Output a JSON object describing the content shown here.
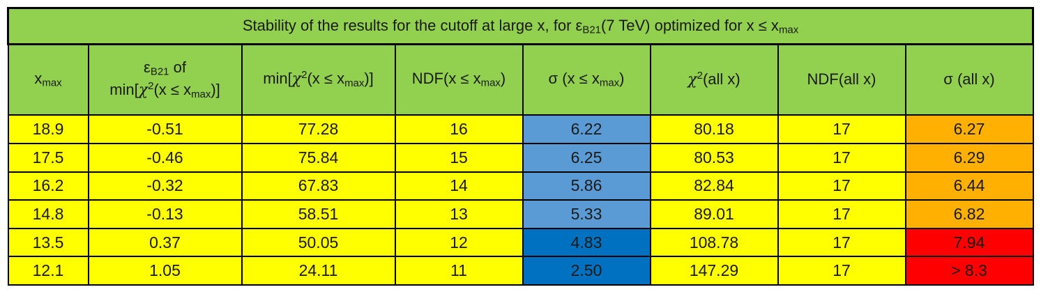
{
  "title": {
    "prefix": "Stability of the results for the cutoff at large x, for ε",
    "eps_sub": "B21",
    "middle": "(7 TeV) optimized for x  ≤ x",
    "xmax_sub": "max"
  },
  "headers": {
    "xmax": {
      "base": "x",
      "sub": "max"
    },
    "eps": {
      "base": "ε",
      "sub": "B21",
      "of": "  of",
      "line2_pre": "min[",
      "chi": "χ",
      "sup": "2",
      "mid": "(x ≤ x",
      "sub2": "max",
      "post": ")]"
    },
    "min_chi": {
      "pre": "min[",
      "chi": "χ",
      "sup": "2",
      "mid": "(x ≤ x",
      "sub": "max",
      "post": ")]"
    },
    "ndf_x": {
      "pre": "NDF(x  ≤ x",
      "sub": "max",
      "post": ")"
    },
    "sigma_x": {
      "pre": "σ (x  ≤ x",
      "sub": "max",
      "post": ")"
    },
    "chi_all": {
      "chi": "χ",
      "sup": "2",
      "post": "(all x)"
    },
    "ndf_all": "NDF(all x)",
    "sigma_all": "σ (all x)"
  },
  "rows": [
    {
      "xmax": "18.9",
      "eps": "-0.51",
      "min_chi": "77.28",
      "ndf_x": "16",
      "sigma_x": "6.22",
      "chi_all": "80.18",
      "ndf_all": "17",
      "sigma_all": "6.27"
    },
    {
      "xmax": "17.5",
      "eps": "-0.46",
      "min_chi": "75.84",
      "ndf_x": "15",
      "sigma_x": "6.25",
      "chi_all": "80.53",
      "ndf_all": "17",
      "sigma_all": "6.29"
    },
    {
      "xmax": "16.2",
      "eps": "-0.32",
      "min_chi": "67.83",
      "ndf_x": "14",
      "sigma_x": "5.86",
      "chi_all": "82.84",
      "ndf_all": "17",
      "sigma_all": "6.44"
    },
    {
      "xmax": "14.8",
      "eps": "-0.13",
      "min_chi": "58.51",
      "ndf_x": "13",
      "sigma_x": "5.33",
      "chi_all": "89.01",
      "ndf_all": "17",
      "sigma_all": "6.82"
    },
    {
      "xmax": "13.5",
      "eps": "0.37",
      "min_chi": "50.05",
      "ndf_x": "12",
      "sigma_x": "4.83",
      "chi_all": "108.78",
      "ndf_all": "17",
      "sigma_all": "7.94"
    },
    {
      "xmax": "12.1",
      "eps": "1.05",
      "min_chi": "24.11",
      "ndf_x": "11",
      "sigma_x": "2.50",
      "chi_all": "147.29",
      "ndf_all": "17",
      "sigma_all": "> 8.3"
    }
  ],
  "colors": {
    "header_green": "#92d050",
    "cell_yellow": "#ffff00",
    "sigma_light_blue": "#5b9bd5",
    "sigma_dark_blue": "#0070c0",
    "sigma_all_orange": "#ffb000",
    "sigma_all_red": "#ff0000"
  }
}
